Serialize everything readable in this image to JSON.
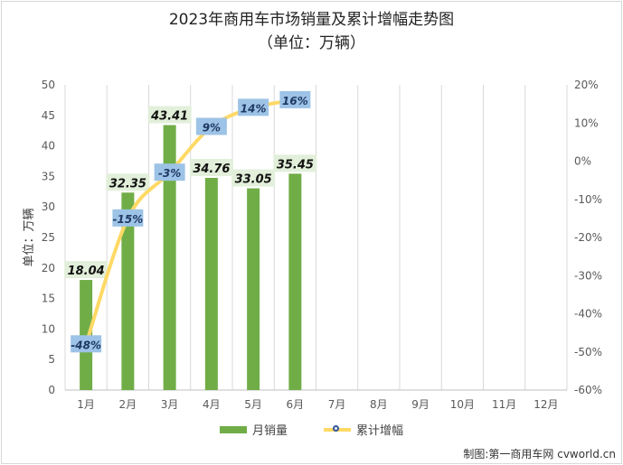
{
  "title": "2023年商用车市场销量及累计增幅走势图",
  "subtitle": "（单位：万辆）",
  "credit": "制图:第一商用车网 cvworld.cn",
  "colors": {
    "bar": "#70ad47",
    "line": "#ffd966",
    "marker_edge": "#2f5597",
    "label_box": "#9dc3e6",
    "value_label_bg": "#e2efda",
    "grid": "#d9d9d9"
  },
  "chart_data": {
    "type": "bar+line",
    "categories": [
      "1月",
      "2月",
      "3月",
      "4月",
      "5月",
      "6月",
      "7月",
      "8月",
      "9月",
      "10月",
      "11月",
      "12月"
    ],
    "series": [
      {
        "name": "月销量",
        "type": "bar",
        "axis": "left",
        "values": [
          18.04,
          32.35,
          43.41,
          34.76,
          33.05,
          35.45,
          null,
          null,
          null,
          null,
          null,
          null
        ],
        "labels": [
          "18.04",
          "32.35",
          "43.41",
          "34.76",
          "33.05",
          "35.45"
        ]
      },
      {
        "name": "累计增幅",
        "type": "line",
        "axis": "right",
        "values": [
          -48,
          -15,
          -3,
          9,
          14,
          16,
          null,
          null,
          null,
          null,
          null,
          null
        ],
        "labels": [
          "-48%",
          "-15%",
          "-3%",
          "9%",
          "14%",
          "16%"
        ]
      }
    ],
    "ylabel": "单位：万辆",
    "ylim": [
      0,
      50
    ],
    "yticks": [
      "0",
      "5",
      "10",
      "15",
      "20",
      "25",
      "30",
      "35",
      "40",
      "45",
      "50"
    ],
    "y2lim": [
      -60,
      20
    ],
    "y2ticks": [
      "-60%",
      "-50%",
      "-40%",
      "-30%",
      "-20%",
      "-10%",
      "0%",
      "10%",
      "20%"
    ],
    "grid": "vertical",
    "legend": "bottom"
  }
}
